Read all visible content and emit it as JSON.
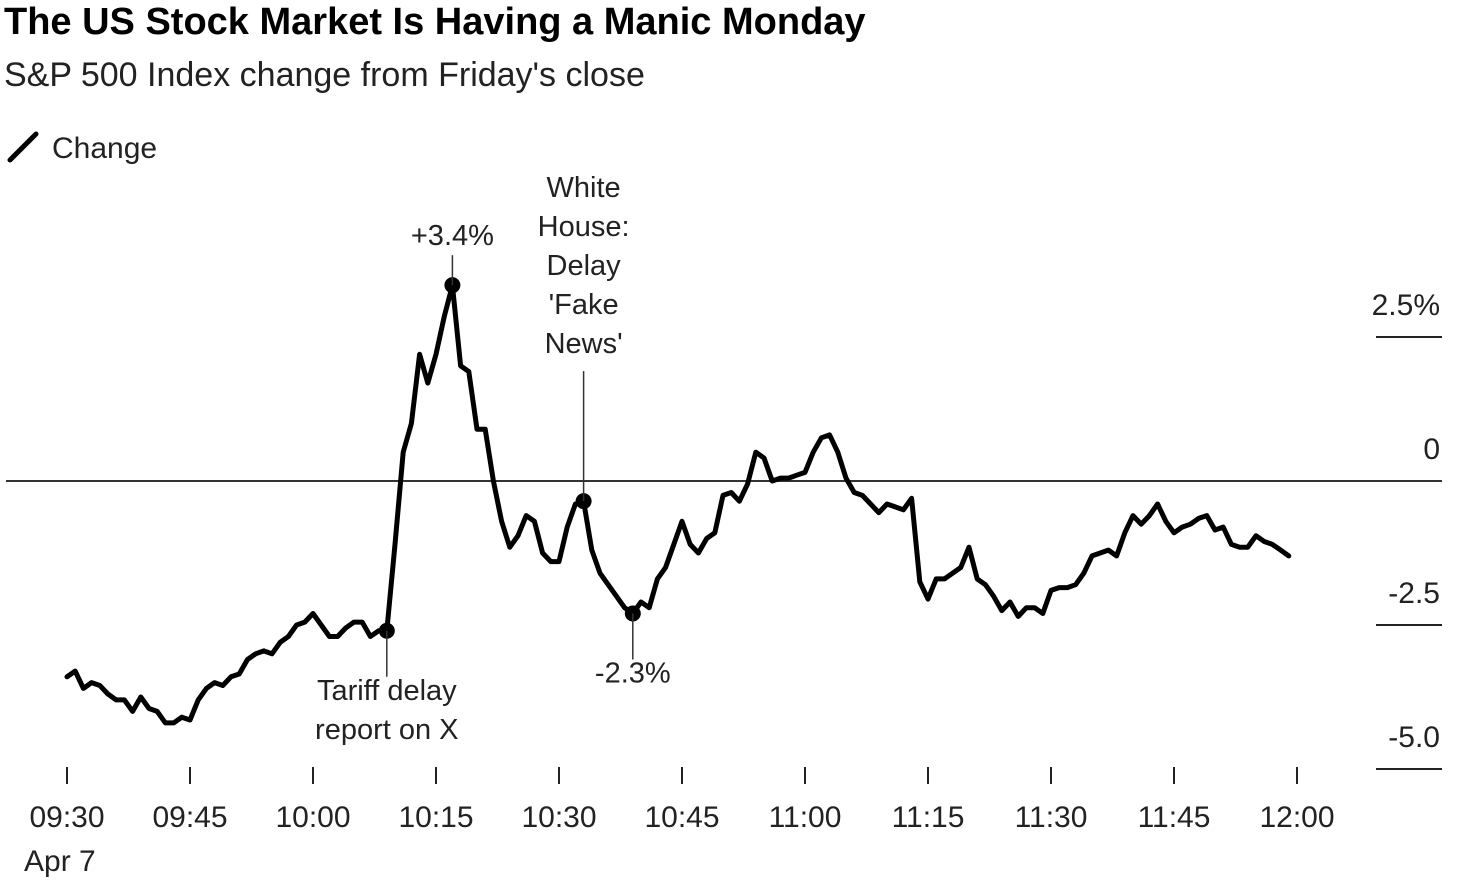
{
  "chart_data": {
    "type": "line",
    "title": "The US Stock Market Is Having a Manic Monday",
    "subtitle": "S&P 500 Index change from Friday's close",
    "legend": [
      {
        "label": "Change"
      }
    ],
    "xlabel": "",
    "ylabel": "",
    "ylim": [
      -5.5,
      3.5
    ],
    "grid": false,
    "y_ticks": [
      {
        "value": 2.5,
        "label": "2.5%"
      },
      {
        "value": 0,
        "label": "0"
      },
      {
        "value": -2.5,
        "label": "-2.5"
      },
      {
        "value": -5.0,
        "label": "-5.0"
      }
    ],
    "x_ticks": [
      {
        "time": "09:30",
        "label": "09:30"
      },
      {
        "time": "09:45",
        "label": "09:45"
      },
      {
        "time": "10:00",
        "label": "10:00"
      },
      {
        "time": "10:15",
        "label": "10:15"
      },
      {
        "time": "10:30",
        "label": "10:30"
      },
      {
        "time": "10:45",
        "label": "10:45"
      },
      {
        "time": "11:00",
        "label": "11:00"
      },
      {
        "time": "11:15",
        "label": "11:15"
      },
      {
        "time": "11:30",
        "label": "11:30"
      },
      {
        "time": "11:45",
        "label": "11:45"
      },
      {
        "time": "12:00",
        "label": "12:00"
      }
    ],
    "x_date_label": "Apr 7",
    "series": [
      {
        "name": "Change",
        "points": [
          [
            "09:30",
            -3.4
          ],
          [
            "09:31",
            -3.3
          ],
          [
            "09:32",
            -3.6
          ],
          [
            "09:33",
            -3.5
          ],
          [
            "09:34",
            -3.55
          ],
          [
            "09:35",
            -3.7
          ],
          [
            "09:36",
            -3.8
          ],
          [
            "09:37",
            -3.8
          ],
          [
            "09:38",
            -4.0
          ],
          [
            "09:39",
            -3.75
          ],
          [
            "09:40",
            -3.95
          ],
          [
            "09:41",
            -4.0
          ],
          [
            "09:42",
            -4.2
          ],
          [
            "09:43",
            -4.2
          ],
          [
            "09:44",
            -4.1
          ],
          [
            "09:45",
            -4.15
          ],
          [
            "09:46",
            -3.8
          ],
          [
            "09:47",
            -3.6
          ],
          [
            "09:48",
            -3.5
          ],
          [
            "09:49",
            -3.55
          ],
          [
            "09:50",
            -3.4
          ],
          [
            "09:51",
            -3.35
          ],
          [
            "09:52",
            -3.1
          ],
          [
            "09:53",
            -3.0
          ],
          [
            "09:54",
            -2.95
          ],
          [
            "09:55",
            -3.0
          ],
          [
            "09:56",
            -2.8
          ],
          [
            "09:57",
            -2.7
          ],
          [
            "09:58",
            -2.5
          ],
          [
            "09:59",
            -2.45
          ],
          [
            "10:00",
            -2.3
          ],
          [
            "10:01",
            -2.5
          ],
          [
            "10:02",
            -2.7
          ],
          [
            "10:03",
            -2.7
          ],
          [
            "10:04",
            -2.55
          ],
          [
            "10:05",
            -2.45
          ],
          [
            "10:06",
            -2.45
          ],
          [
            "10:07",
            -2.7
          ],
          [
            "10:08",
            -2.6
          ],
          [
            "10:09",
            -2.6
          ],
          [
            "10:10",
            -1.1
          ],
          [
            "10:11",
            0.5
          ],
          [
            "10:12",
            1.0
          ],
          [
            "10:13",
            2.2
          ],
          [
            "10:14",
            1.7
          ],
          [
            "10:15",
            2.2
          ],
          [
            "10:16",
            2.85
          ],
          [
            "10:17",
            3.4
          ],
          [
            "10:18",
            2.0
          ],
          [
            "10:19",
            1.9
          ],
          [
            "10:20",
            0.9
          ],
          [
            "10:21",
            0.9
          ],
          [
            "10:22",
            0.0
          ],
          [
            "10:23",
            -0.7
          ],
          [
            "10:24",
            -1.15
          ],
          [
            "10:25",
            -0.95
          ],
          [
            "10:26",
            -0.6
          ],
          [
            "10:27",
            -0.7
          ],
          [
            "10:28",
            -1.25
          ],
          [
            "10:29",
            -1.4
          ],
          [
            "10:30",
            -1.4
          ],
          [
            "10:31",
            -0.8
          ],
          [
            "10:32",
            -0.4
          ],
          [
            "10:33",
            -0.35
          ],
          [
            "10:34",
            -1.2
          ],
          [
            "10:35",
            -1.6
          ],
          [
            "10:36",
            -1.8
          ],
          [
            "10:37",
            -2.0
          ],
          [
            "10:38",
            -2.2
          ],
          [
            "10:39",
            -2.3
          ],
          [
            "10:40",
            -2.1
          ],
          [
            "10:41",
            -2.2
          ],
          [
            "10:42",
            -1.7
          ],
          [
            "10:43",
            -1.5
          ],
          [
            "10:44",
            -1.1
          ],
          [
            "10:45",
            -0.7
          ],
          [
            "10:46",
            -1.1
          ],
          [
            "10:47",
            -1.25
          ],
          [
            "10:48",
            -1.0
          ],
          [
            "10:49",
            -0.9
          ],
          [
            "10:50",
            -0.25
          ],
          [
            "10:51",
            -0.2
          ],
          [
            "10:52",
            -0.35
          ],
          [
            "10:53",
            -0.05
          ],
          [
            "10:54",
            0.5
          ],
          [
            "10:55",
            0.4
          ],
          [
            "10:56",
            0.0
          ],
          [
            "10:57",
            0.05
          ],
          [
            "10:58",
            0.05
          ],
          [
            "10:59",
            0.1
          ],
          [
            "11:00",
            0.15
          ],
          [
            "11:01",
            0.5
          ],
          [
            "11:02",
            0.75
          ],
          [
            "11:03",
            0.8
          ],
          [
            "11:04",
            0.5
          ],
          [
            "11:05",
            0.05
          ],
          [
            "11:06",
            -0.2
          ],
          [
            "11:07",
            -0.25
          ],
          [
            "11:08",
            -0.4
          ],
          [
            "11:09",
            -0.55
          ],
          [
            "11:10",
            -0.4
          ],
          [
            "11:11",
            -0.45
          ],
          [
            "11:12",
            -0.5
          ],
          [
            "11:13",
            -0.3
          ],
          [
            "11:14",
            -1.75
          ],
          [
            "11:15",
            -2.05
          ],
          [
            "11:16",
            -1.7
          ],
          [
            "11:17",
            -1.7
          ],
          [
            "11:18",
            -1.6
          ],
          [
            "11:19",
            -1.5
          ],
          [
            "11:20",
            -1.15
          ],
          [
            "11:21",
            -1.7
          ],
          [
            "11:22",
            -1.8
          ],
          [
            "11:23",
            -2.0
          ],
          [
            "11:24",
            -2.25
          ],
          [
            "11:25",
            -2.1
          ],
          [
            "11:26",
            -2.35
          ],
          [
            "11:27",
            -2.2
          ],
          [
            "11:28",
            -2.2
          ],
          [
            "11:29",
            -2.3
          ],
          [
            "11:30",
            -1.9
          ],
          [
            "11:31",
            -1.85
          ],
          [
            "11:32",
            -1.85
          ],
          [
            "11:33",
            -1.8
          ],
          [
            "11:34",
            -1.6
          ],
          [
            "11:35",
            -1.3
          ],
          [
            "11:36",
            -1.25
          ],
          [
            "11:37",
            -1.2
          ],
          [
            "11:38",
            -1.3
          ],
          [
            "11:39",
            -0.9
          ],
          [
            "11:40",
            -0.6
          ],
          [
            "11:41",
            -0.75
          ],
          [
            "11:42",
            -0.6
          ],
          [
            "11:43",
            -0.4
          ],
          [
            "11:44",
            -0.7
          ],
          [
            "11:45",
            -0.9
          ],
          [
            "11:46",
            -0.8
          ],
          [
            "11:47",
            -0.75
          ],
          [
            "11:48",
            -0.65
          ],
          [
            "11:49",
            -0.6
          ],
          [
            "11:50",
            -0.85
          ],
          [
            "11:51",
            -0.8
          ],
          [
            "11:52",
            -1.1
          ],
          [
            "11:53",
            -1.15
          ],
          [
            "11:54",
            -1.15
          ],
          [
            "11:55",
            -0.95
          ],
          [
            "11:56",
            -1.05
          ],
          [
            "11:57",
            -1.1
          ],
          [
            "11:58",
            -1.2
          ],
          [
            "11:59",
            -1.3
          ]
        ]
      }
    ],
    "markers": [
      {
        "time": "10:09",
        "value": -2.6
      },
      {
        "time": "10:17",
        "value": 3.4
      },
      {
        "time": "10:33",
        "value": -0.35
      },
      {
        "time": "10:39",
        "value": -2.3
      }
    ],
    "annotations": [
      {
        "time": "10:09",
        "value": -2.6,
        "text": [
          "Tariff delay",
          "report on X"
        ],
        "position": "below"
      },
      {
        "time": "10:17",
        "value": 3.4,
        "text": [
          "+3.4%"
        ],
        "position": "above"
      },
      {
        "time": "10:33",
        "value": -0.35,
        "text": [
          "White",
          "House:",
          "Delay",
          "'Fake",
          "News'"
        ],
        "position": "above"
      },
      {
        "time": "10:39",
        "value": -2.3,
        "text": [
          "-2.3%"
        ],
        "position": "below"
      }
    ]
  }
}
